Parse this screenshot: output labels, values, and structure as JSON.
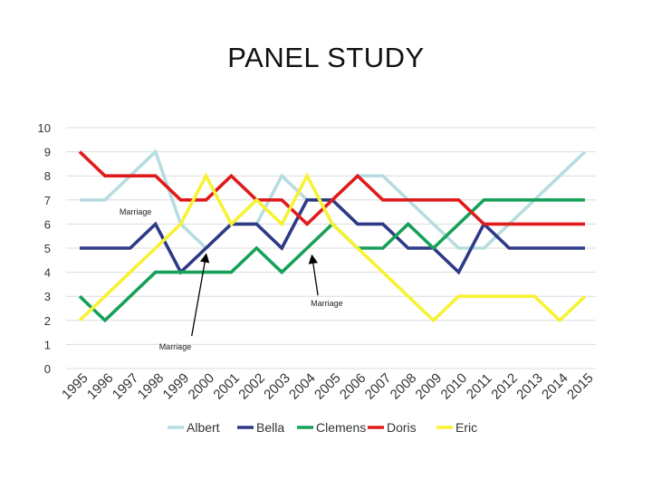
{
  "slide": {
    "title": "PANEL STUDY"
  },
  "chart_data": {
    "type": "line",
    "title": "PANEL STUDY",
    "x": [
      "1995",
      "1996",
      "1997",
      "1998",
      "1999",
      "2000",
      "2001",
      "2002",
      "2003",
      "2004",
      "2005",
      "2006",
      "2007",
      "2008",
      "2009",
      "2010",
      "2011",
      "2012",
      "2013",
      "2014",
      "2015"
    ],
    "ylim": [
      0,
      10
    ],
    "yticks": [
      "0",
      "1",
      "2",
      "3",
      "4",
      "5",
      "6",
      "7",
      "8",
      "9",
      "10"
    ],
    "grid": true,
    "legend_position": "bottom",
    "series": [
      {
        "name": "Albert",
        "color": "#b7dde0",
        "values": [
          7,
          7,
          8,
          9,
          6,
          5,
          6,
          6,
          8,
          7,
          7,
          8,
          8,
          7,
          6,
          5,
          5,
          6,
          7,
          8,
          9
        ]
      },
      {
        "name": "Bella",
        "color": "#2e3a87",
        "values": [
          5,
          5,
          5,
          6,
          4,
          5,
          6,
          6,
          5,
          7,
          7,
          6,
          6,
          5,
          5,
          4,
          6,
          5,
          5,
          5,
          5
        ]
      },
      {
        "name": "Clemens",
        "color": "#17a05a",
        "values": [
          3,
          2,
          3,
          4,
          4,
          4,
          4,
          5,
          4,
          5,
          6,
          5,
          5,
          6,
          5,
          6,
          7,
          7,
          7,
          7,
          7
        ]
      },
      {
        "name": "Doris",
        "color": "#e01b1b",
        "values": [
          9,
          8,
          8,
          8,
          7,
          7,
          8,
          7,
          7,
          6,
          7,
          8,
          7,
          7,
          7,
          7,
          6,
          6,
          6,
          6,
          6
        ]
      },
      {
        "name": "Eric",
        "color": "#f7f233",
        "values": [
          2,
          3,
          4,
          5,
          6,
          8,
          6,
          7,
          6,
          8,
          6,
          5,
          4,
          3,
          2,
          3,
          3,
          3,
          3,
          2,
          3
        ]
      }
    ],
    "annotations": [
      {
        "label": "Marriage",
        "x_index": 1,
        "y": 6.5,
        "arrow": false
      },
      {
        "label": "Marriage",
        "x_index": 9,
        "y": 2.7,
        "arrow_to": {
          "x_index": 9.2,
          "y": 4.65
        }
      },
      {
        "label": "Marriage",
        "x_index": 3,
        "y": 0.9,
        "arrow_to": {
          "x_index": 5,
          "y": 4.7
        }
      }
    ]
  }
}
